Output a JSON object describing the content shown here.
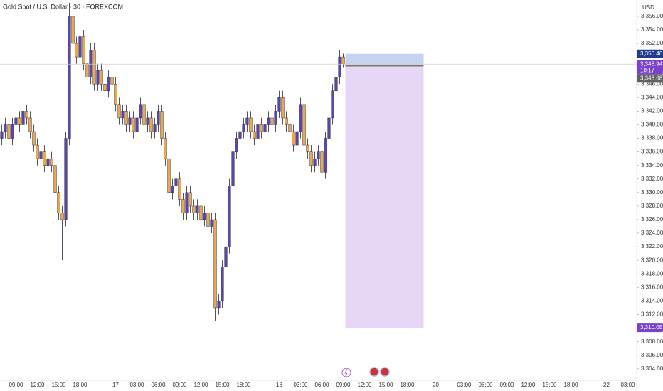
{
  "chart_data": {
    "type": "candlestick",
    "title": "Gold Spot / U.S. Dollar · 30 · FOREXCOM",
    "y_unit": "USD",
    "categories": [
      null,
      null,
      null,
      null,
      "09:00",
      null,
      null,
      null,
      null,
      null,
      "12:00",
      null,
      null,
      null,
      null,
      null,
      "15:00",
      null,
      null,
      null,
      null,
      null,
      "18:00",
      null,
      null,
      null,
      null,
      null,
      null,
      null,
      null,
      null,
      "17",
      null,
      null,
      null,
      null,
      null,
      "03:00",
      null,
      null,
      null,
      null,
      null,
      "06:00",
      null,
      null,
      null,
      null,
      null,
      "09:00",
      null,
      null,
      null,
      null,
      null,
      "12:00",
      null,
      null,
      null,
      null,
      null,
      "15:00",
      null,
      null,
      null,
      null,
      null,
      "18:00",
      null,
      null,
      null,
      null,
      null,
      null,
      null,
      null,
      null,
      "18",
      null,
      null,
      null,
      null,
      null,
      "03:00",
      null,
      null,
      null,
      null,
      null,
      "06:00",
      null,
      null,
      null,
      null,
      null,
      "09:00",
      null,
      null,
      null,
      null,
      null,
      "12:00",
      null,
      null,
      null,
      null,
      null,
      "15:00",
      null,
      null,
      null,
      null,
      null,
      "18:00",
      null,
      null,
      null,
      null,
      null,
      null,
      null,
      "20",
      null,
      null,
      null,
      null,
      null,
      null,
      null,
      "03:00",
      null,
      null,
      null,
      null,
      null,
      "06:00",
      null,
      null,
      null,
      null,
      null,
      "09:00",
      null,
      null,
      null,
      null,
      null,
      "12:00",
      null,
      null,
      null,
      null,
      null,
      "15:00",
      null,
      null,
      null,
      null,
      null,
      "18:00",
      null,
      null,
      null,
      null,
      null,
      null,
      null,
      null,
      null,
      "22",
      null,
      null,
      null,
      null,
      null,
      "03:00",
      null,
      null
    ],
    "open": [
      3338,
      3339,
      3340,
      3338,
      3340,
      3341,
      3340,
      3342,
      3341,
      3339,
      3337,
      3335,
      3336,
      3334,
      3335,
      3334,
      3330,
      3327,
      3326,
      3338,
      3356,
      3352,
      3350,
      3353,
      3349,
      3347,
      3351,
      3346,
      3348,
      3346,
      3345,
      3347,
      3346,
      3343,
      3341,
      3342,
      3340,
      3341,
      3339,
      3341,
      3343,
      3340,
      3341,
      3339,
      3340,
      3342,
      3338,
      3335,
      3330,
      3331,
      3332,
      3329,
      3327,
      3330,
      3328,
      3327,
      3328,
      3326,
      3327,
      3325,
      3326,
      3313,
      3314,
      3319,
      3322,
      3331,
      3336,
      3338,
      3339,
      3340,
      3341,
      3339,
      3338,
      3340,
      3339,
      3340,
      3341,
      3340,
      3342,
      3344,
      3341,
      3340,
      3339,
      3337,
      3339,
      3343,
      3337,
      3336,
      3334,
      3335,
      3336,
      3333,
      3338,
      3341,
      3345,
      3347,
      3350,
      null,
      null,
      null,
      null,
      null,
      null,
      null,
      null,
      null,
      null,
      null,
      null,
      null,
      null,
      null,
      null,
      null,
      null,
      null,
      null,
      null,
      null,
      null,
      null,
      null,
      null,
      null,
      null,
      null,
      null,
      null,
      null,
      null,
      null,
      null,
      null,
      null,
      null,
      null,
      null,
      null,
      null,
      null,
      null,
      null,
      null,
      null,
      null,
      null,
      null,
      null,
      null,
      null,
      null,
      null,
      null,
      null,
      null,
      null,
      null,
      null,
      null,
      null,
      null,
      null,
      null,
      null,
      null,
      null,
      null,
      null,
      null,
      null,
      null,
      null,
      null,
      null,
      null,
      null,
      null,
      null,
      null
    ],
    "high": [
      3340,
      3341,
      3341,
      3341,
      3342,
      3342,
      3344,
      3343,
      3342,
      3340,
      3338,
      3337,
      3337,
      3336,
      3336,
      3335,
      3331,
      3328,
      3339,
      3358,
      3357,
      3353,
      3354,
      3354,
      3350,
      3352,
      3352,
      3349,
      3349,
      3347,
      3348,
      3348,
      3347,
      3344,
      3343,
      3343,
      3342,
      3342,
      3342,
      3344,
      3344,
      3342,
      3342,
      3341,
      3343,
      3343,
      3339,
      3336,
      3332,
      3333,
      3333,
      3330,
      3331,
      3331,
      3329,
      3329,
      3329,
      3328,
      3328,
      3327,
      3327,
      3315,
      3320,
      3323,
      3332,
      3337,
      3339,
      3340,
      3341,
      3342,
      3342,
      3340,
      3341,
      3341,
      3341,
      3342,
      3342,
      3343,
      3345,
      3345,
      3342,
      3341,
      3340,
      3340,
      3344,
      3344,
      3338,
      3337,
      3336,
      3337,
      3337,
      3339,
      3342,
      3346,
      3348,
      3351,
      3350.5,
      null,
      null,
      null,
      null,
      null,
      null,
      null,
      null,
      null,
      null,
      null,
      null,
      null,
      null,
      null,
      null,
      null,
      null,
      null,
      null,
      null,
      null,
      null,
      null,
      null,
      null,
      null,
      null,
      null,
      null,
      null,
      null,
      null,
      null,
      null,
      null,
      null,
      null,
      null,
      null,
      null,
      null,
      null,
      null,
      null,
      null,
      null,
      null,
      null,
      null,
      null,
      null,
      null,
      null,
      null,
      null,
      null,
      null,
      null,
      null,
      null,
      null,
      null,
      null,
      null,
      null,
      null,
      null,
      null,
      null,
      null,
      null,
      null,
      null,
      null,
      null,
      null,
      null,
      null,
      null,
      null,
      null
    ],
    "low": [
      3337,
      3338,
      3337,
      3337,
      3339,
      3339,
      3339,
      3340,
      3338,
      3336,
      3334,
      3334,
      3333,
      3333,
      3333,
      3329,
      3326,
      3320,
      3325,
      3337,
      3351,
      3349,
      3349,
      3348,
      3346,
      3346,
      3345,
      3345,
      3345,
      3344,
      3344,
      3345,
      3342,
      3340,
      3340,
      3339,
      3339,
      3338,
      3338,
      3340,
      3339,
      3339,
      3338,
      3338,
      3339,
      3337,
      3334,
      3329,
      3329,
      3330,
      3328,
      3326,
      3326,
      3327,
      3326,
      3326,
      3325,
      3325,
      3324,
      3324,
      3311,
      3312,
      3313,
      3318,
      3321,
      3330,
      3335,
      3337,
      3338,
      3339,
      3338,
      3337,
      3337,
      3338,
      3338,
      3339,
      3339,
      3339,
      3341,
      3340,
      3339,
      3338,
      3336,
      3336,
      3338,
      3336,
      3335,
      3333,
      3333,
      3334,
      3332,
      3332,
      3337,
      3340,
      3344,
      3346,
      3348.5,
      null,
      null,
      null,
      null,
      null,
      null,
      null,
      null,
      null,
      null,
      null,
      null,
      null,
      null,
      null,
      null,
      null,
      null,
      null,
      null,
      null,
      null,
      null,
      null,
      null,
      null,
      null,
      null,
      null,
      null,
      null,
      null,
      null,
      null,
      null,
      null,
      null,
      null,
      null,
      null,
      null,
      null,
      null,
      null,
      null,
      null,
      null,
      null,
      null,
      null,
      null,
      null,
      null,
      null,
      null,
      null,
      null,
      null,
      null,
      null,
      null,
      null,
      null,
      null,
      null,
      null,
      null,
      null,
      null,
      null,
      null,
      null,
      null,
      null,
      null,
      null,
      null,
      null,
      null,
      null,
      null,
      null
    ],
    "close": [
      3339,
      3340,
      3338,
      3340,
      3341,
      3340,
      3342,
      3341,
      3339,
      3337,
      3335,
      3336,
      3334,
      3335,
      3334,
      3330,
      3327,
      3326,
      3338,
      3356,
      3352,
      3350,
      3353,
      3349,
      3347,
      3351,
      3346,
      3348,
      3346,
      3345,
      3347,
      3346,
      3343,
      3341,
      3342,
      3340,
      3341,
      3339,
      3341,
      3343,
      3340,
      3341,
      3339,
      3340,
      3342,
      3338,
      3335,
      3330,
      3331,
      3332,
      3329,
      3327,
      3330,
      3328,
      3327,
      3328,
      3326,
      3327,
      3325,
      3326,
      3313,
      3314,
      3319,
      3322,
      3331,
      3336,
      3338,
      3339,
      3340,
      3341,
      3339,
      3338,
      3340,
      3339,
      3340,
      3341,
      3340,
      3342,
      3344,
      3341,
      3340,
      3339,
      3337,
      3339,
      3343,
      3337,
      3336,
      3334,
      3335,
      3336,
      3333,
      3338,
      3341,
      3345,
      3347,
      3350,
      3348.94,
      null,
      null,
      null,
      null,
      null,
      null,
      null,
      null,
      null,
      null,
      null,
      null,
      null,
      null,
      null,
      null,
      null,
      null,
      null,
      null,
      null,
      null,
      null,
      null,
      null,
      null,
      null,
      null,
      null,
      null,
      null,
      null,
      null,
      null,
      null,
      null,
      null,
      null,
      null,
      null,
      null,
      null,
      null,
      null,
      null,
      null,
      null,
      null,
      null,
      null,
      null,
      null,
      null,
      null,
      null,
      null,
      null,
      null,
      null,
      null,
      null,
      null,
      null,
      null,
      null,
      null,
      null,
      null,
      null,
      null,
      null,
      null,
      null,
      null,
      null,
      null,
      null,
      null,
      null,
      null,
      null,
      null
    ],
    "up_color": "#5a45a8",
    "down_color": "#f0a93a",
    "ylim": [
      3302.3,
      3358.4
    ],
    "yticks": [
      {
        "value": 3304,
        "label": "3,304.00"
      },
      {
        "value": 3306,
        "label": "3,306.00"
      },
      {
        "value": 3308,
        "label": "3,308.00"
      },
      {
        "value": 3310,
        "label": "3,310.00"
      },
      {
        "value": 3312,
        "label": "3,312.00"
      },
      {
        "value": 3314,
        "label": "3,314.00"
      },
      {
        "value": 3316,
        "label": "3,316.00"
      },
      {
        "value": 3318,
        "label": "3,318.00"
      },
      {
        "value": 3320,
        "label": "3,320.00"
      },
      {
        "value": 3322,
        "label": "3,322.00"
      },
      {
        "value": 3324,
        "label": "3,324.00"
      },
      {
        "value": 3326,
        "label": "3,326.00"
      },
      {
        "value": 3328,
        "label": "3,328.00"
      },
      {
        "value": 3330,
        "label": "3,330.00"
      },
      {
        "value": 3332,
        "label": "3,332.00"
      },
      {
        "value": 3334,
        "label": "3,334.00"
      },
      {
        "value": 3336,
        "label": "3,336.00"
      },
      {
        "value": 3338,
        "label": "3,338.00"
      },
      {
        "value": 3340,
        "label": "3,340.00"
      },
      {
        "value": 3342,
        "label": "3,342.00"
      },
      {
        "value": 3344,
        "label": "3,344.00"
      },
      {
        "value": 3346,
        "label": "3,346.00"
      },
      {
        "value": 3348,
        "label": "3,348.00"
      },
      {
        "value": 3350,
        "label": "3,350.00"
      },
      {
        "value": 3352,
        "label": "3,352.00"
      },
      {
        "value": 3354,
        "label": "3,354.00"
      },
      {
        "value": 3356,
        "label": "3,356.00"
      }
    ],
    "position": {
      "upper": {
        "value": 3350.46,
        "label": "3,350.46",
        "color": "#c6d2ef"
      },
      "entry": {
        "value": 3348.68,
        "label": "3,348.68"
      },
      "lower": {
        "value": 3310.05,
        "label": "3,310.05",
        "color": "#e6d7f6"
      }
    },
    "last_price": {
      "value": 3348.94,
      "label": "3,348.94",
      "countdown": "10:17"
    }
  }
}
